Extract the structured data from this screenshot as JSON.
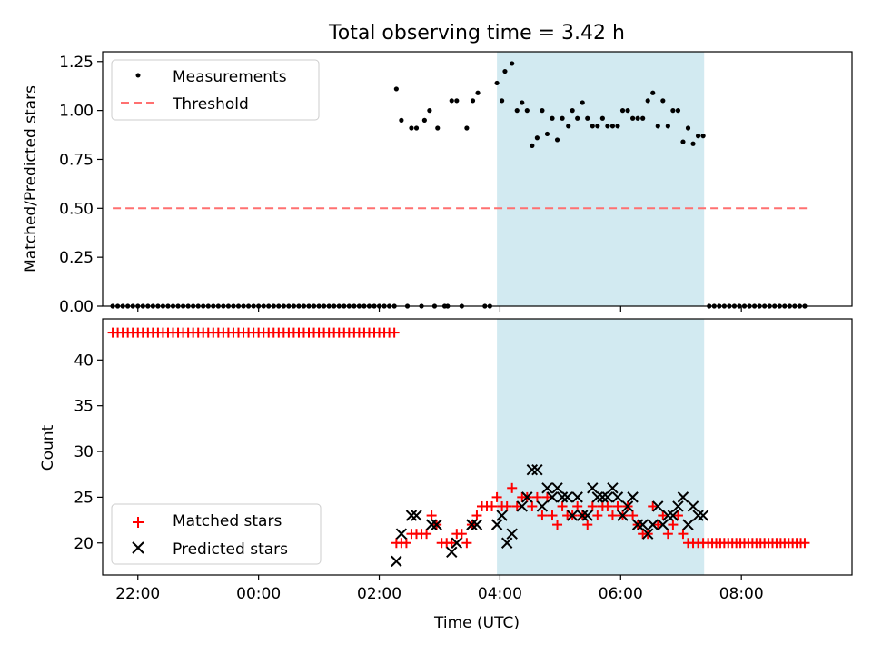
{
  "title": "Total observing time = 3.42 h",
  "colors": {
    "measurement": "#000000",
    "threshold": "#ff7070",
    "matched": "#ff0000",
    "predicted": "#000000",
    "span": "#add8e6"
  },
  "chart_data": [
    {
      "type": "scatter",
      "ylabel": "Matched/Predicted stars",
      "xlabel": "",
      "xlim": [
        "21:25",
        "09:50"
      ],
      "ylim": [
        0,
        1.3
      ],
      "yticks": [
        "0.00",
        "0.25",
        "0.50",
        "0.75",
        "1.00",
        "1.25"
      ],
      "xticks": [
        "22:00",
        "00:00",
        "02:00",
        "04:00",
        "06:00",
        "08:00"
      ],
      "legend": [
        "Measurements",
        "Threshold"
      ],
      "legend_placement": "upper left",
      "grid": false,
      "shaded_span": [
        "03:57",
        "07:23"
      ],
      "threshold": {
        "name": "Threshold",
        "y": 0.5,
        "x": [
          "21:35",
          "09:05"
        ]
      },
      "series": [
        {
          "name": "Measurements",
          "zero_points": {
            "start": "21:35",
            "end": "02:15",
            "step_min": 5
          },
          "points": [
            [
              "02:17",
              1.11
            ],
            [
              "02:22",
              0.95
            ],
            [
              "02:28",
              0.0
            ],
            [
              "02:32",
              0.91
            ],
            [
              "02:37",
              0.91
            ],
            [
              "02:42",
              0.0
            ],
            [
              "02:45",
              0.95
            ],
            [
              "02:50",
              1.0
            ],
            [
              "02:55",
              0.0
            ],
            [
              "02:58",
              0.91
            ],
            [
              "03:05",
              0.0
            ],
            [
              "03:08",
              0.0
            ],
            [
              "03:12",
              1.05
            ],
            [
              "03:17",
              1.05
            ],
            [
              "03:22",
              0.0
            ],
            [
              "03:27",
              0.91
            ],
            [
              "03:33",
              1.05
            ],
            [
              "03:38",
              1.09
            ],
            [
              "03:45",
              0.0
            ],
            [
              "03:50",
              0.0
            ],
            [
              "03:57",
              1.14
            ],
            [
              "04:02",
              1.05
            ],
            [
              "04:05",
              1.2
            ],
            [
              "04:12",
              1.24
            ],
            [
              "04:17",
              1.0
            ],
            [
              "04:22",
              1.04
            ],
            [
              "04:27",
              1.0
            ],
            [
              "04:32",
              0.82
            ],
            [
              "04:37",
              0.86
            ],
            [
              "04:42",
              1.0
            ],
            [
              "04:47",
              0.88
            ],
            [
              "04:52",
              0.96
            ],
            [
              "04:57",
              0.85
            ],
            [
              "05:02",
              0.96
            ],
            [
              "05:08",
              0.92
            ],
            [
              "05:12",
              1.0
            ],
            [
              "05:17",
              0.96
            ],
            [
              "05:22",
              1.04
            ],
            [
              "05:27",
              0.96
            ],
            [
              "05:32",
              0.92
            ],
            [
              "05:37",
              0.92
            ],
            [
              "05:42",
              0.96
            ],
            [
              "05:47",
              0.92
            ],
            [
              "05:52",
              0.92
            ],
            [
              "05:57",
              0.92
            ],
            [
              "06:02",
              1.0
            ],
            [
              "06:07",
              1.0
            ],
            [
              "06:12",
              0.96
            ],
            [
              "06:17",
              0.96
            ],
            [
              "06:22",
              0.96
            ],
            [
              "06:27",
              1.05
            ],
            [
              "06:32",
              1.09
            ],
            [
              "06:37",
              0.92
            ],
            [
              "06:42",
              1.05
            ],
            [
              "06:47",
              0.92
            ],
            [
              "06:52",
              1.0
            ],
            [
              "06:57",
              1.0
            ],
            [
              "07:02",
              0.84
            ],
            [
              "07:07",
              0.91
            ],
            [
              "07:12",
              0.83
            ],
            [
              "07:17",
              0.87
            ],
            [
              "07:22",
              0.87
            ]
          ],
          "trailing_zero_points": {
            "start": "07:28",
            "end": "09:05",
            "step_min": 5
          }
        }
      ]
    },
    {
      "type": "scatter",
      "ylabel": "Count",
      "xlabel": "Time (UTC)",
      "xlim": [
        "21:25",
        "09:50"
      ],
      "ylim": [
        16.5,
        44.5
      ],
      "yticks": [
        "20",
        "25",
        "30",
        "35",
        "40"
      ],
      "xticks": [
        "22:00",
        "00:00",
        "02:00",
        "04:00",
        "06:00",
        "08:00"
      ],
      "legend": [
        "Matched stars",
        "Predicted stars"
      ],
      "legend_placement": "lower left",
      "grid": false,
      "shaded_span": [
        "03:57",
        "07:23"
      ],
      "series": [
        {
          "name": "Matched stars",
          "constant_run_1": {
            "start": "21:35",
            "end": "02:15",
            "step_min": 5,
            "value": 43
          },
          "points": [
            [
              "02:17",
              20
            ],
            [
              "02:22",
              20
            ],
            [
              "02:27",
              20
            ],
            [
              "02:32",
              21
            ],
            [
              "02:37",
              21
            ],
            [
              "02:42",
              21
            ],
            [
              "02:47",
              21
            ],
            [
              "02:52",
              23
            ],
            [
              "02:57",
              22
            ],
            [
              "03:02",
              20
            ],
            [
              "03:07",
              20
            ],
            [
              "03:12",
              20
            ],
            [
              "03:17",
              21
            ],
            [
              "03:22",
              21
            ],
            [
              "03:27",
              20
            ],
            [
              "03:32",
              22
            ],
            [
              "03:37",
              23
            ],
            [
              "03:42",
              24
            ],
            [
              "03:47",
              24
            ],
            [
              "03:52",
              24
            ],
            [
              "03:57",
              25
            ],
            [
              "04:02",
              24
            ],
            [
              "04:07",
              24
            ],
            [
              "04:12",
              26
            ],
            [
              "04:17",
              24
            ],
            [
              "04:22",
              25
            ],
            [
              "04:27",
              25
            ],
            [
              "04:32",
              24
            ],
            [
              "04:37",
              25
            ],
            [
              "04:42",
              23
            ],
            [
              "04:47",
              25
            ],
            [
              "04:52",
              23
            ],
            [
              "04:57",
              22
            ],
            [
              "05:02",
              24
            ],
            [
              "05:07",
              23
            ],
            [
              "05:12",
              23
            ],
            [
              "05:17",
              24
            ],
            [
              "05:22",
              23
            ],
            [
              "05:27",
              22
            ],
            [
              "05:32",
              24
            ],
            [
              "05:37",
              23
            ],
            [
              "05:42",
              24
            ],
            [
              "05:47",
              24
            ],
            [
              "05:52",
              23
            ],
            [
              "05:57",
              24
            ],
            [
              "06:02",
              23
            ],
            [
              "06:07",
              24
            ],
            [
              "06:12",
              23
            ],
            [
              "06:17",
              22
            ],
            [
              "06:22",
              21
            ],
            [
              "06:27",
              21
            ],
            [
              "06:32",
              24
            ],
            [
              "06:37",
              22
            ],
            [
              "06:42",
              23
            ],
            [
              "06:47",
              21
            ],
            [
              "06:52",
              22
            ],
            [
              "06:57",
              23
            ],
            [
              "07:02",
              21
            ],
            [
              "07:07",
              20
            ],
            [
              "07:12",
              20
            ],
            [
              "07:17",
              20
            ],
            [
              "07:22",
              20
            ]
          ],
          "constant_run_2": {
            "start": "07:27",
            "end": "09:05",
            "step_min": 4,
            "value": 20
          }
        },
        {
          "name": "Predicted stars",
          "points": [
            [
              "02:17",
              18
            ],
            [
              "02:22",
              21
            ],
            [
              "02:32",
              23
            ],
            [
              "02:37",
              23
            ],
            [
              "02:52",
              22
            ],
            [
              "02:57",
              22
            ],
            [
              "03:12",
              19
            ],
            [
              "03:17",
              20
            ],
            [
              "03:32",
              22
            ],
            [
              "03:37",
              22
            ],
            [
              "03:57",
              22
            ],
            [
              "04:02",
              23
            ],
            [
              "04:07",
              20
            ],
            [
              "04:12",
              21
            ],
            [
              "04:22",
              24
            ],
            [
              "04:27",
              25
            ],
            [
              "04:32",
              28
            ],
            [
              "04:37",
              28
            ],
            [
              "04:42",
              24
            ],
            [
              "04:47",
              26
            ],
            [
              "04:52",
              25
            ],
            [
              "04:57",
              26
            ],
            [
              "05:02",
              25
            ],
            [
              "05:07",
              25
            ],
            [
              "05:12",
              23
            ],
            [
              "05:17",
              25
            ],
            [
              "05:22",
              23
            ],
            [
              "05:27",
              23
            ],
            [
              "05:32",
              26
            ],
            [
              "05:37",
              25
            ],
            [
              "05:42",
              25
            ],
            [
              "05:47",
              25
            ],
            [
              "05:52",
              26
            ],
            [
              "05:57",
              25
            ],
            [
              "06:02",
              23
            ],
            [
              "06:07",
              24
            ],
            [
              "06:12",
              25
            ],
            [
              "06:17",
              22
            ],
            [
              "06:22",
              22
            ],
            [
              "06:27",
              21
            ],
            [
              "06:32",
              22
            ],
            [
              "06:37",
              24
            ],
            [
              "06:42",
              22
            ],
            [
              "06:47",
              23
            ],
            [
              "06:52",
              23
            ],
            [
              "06:57",
              24
            ],
            [
              "07:02",
              25
            ],
            [
              "07:07",
              22
            ],
            [
              "07:12",
              24
            ],
            [
              "07:17",
              23
            ],
            [
              "07:22",
              23
            ]
          ]
        }
      ]
    }
  ]
}
